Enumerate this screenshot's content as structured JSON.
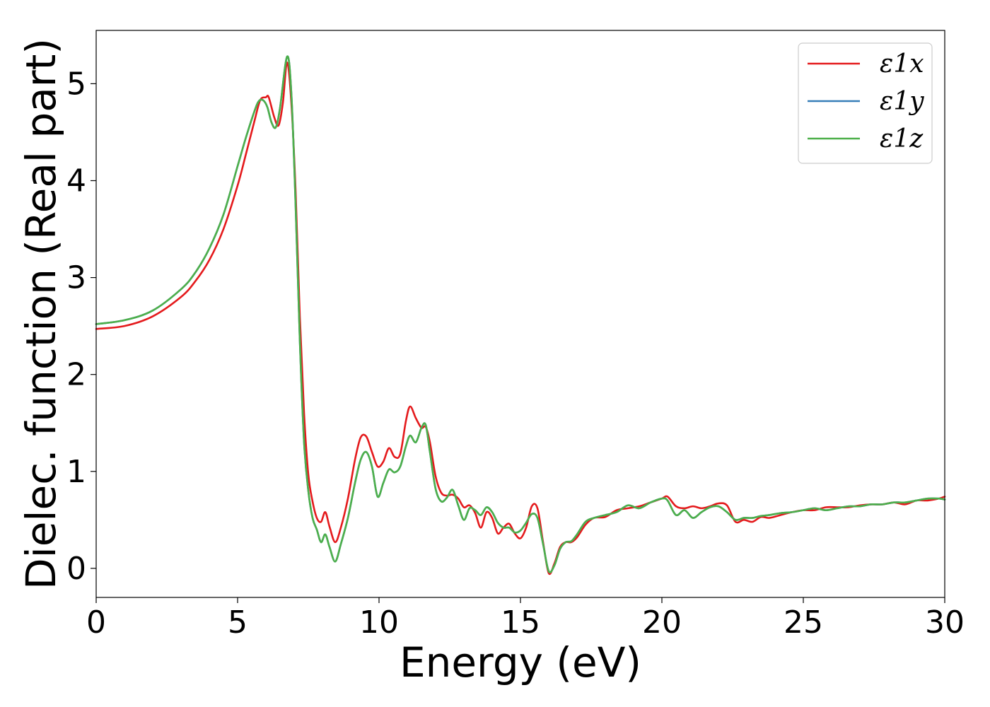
{
  "chart_data": {
    "type": "line",
    "title": "",
    "xlabel": "Energy (eV)",
    "ylabel": "Dielec. function (Real part)",
    "xlim": [
      0,
      30
    ],
    "ylim": [
      -0.3,
      5.55
    ],
    "xticks": [
      0,
      5,
      10,
      15,
      20,
      25,
      30
    ],
    "xtick_labels": [
      "0",
      "5",
      "10",
      "15",
      "20",
      "25",
      "30"
    ],
    "yticks": [
      0,
      1,
      2,
      3,
      4,
      5
    ],
    "ytick_labels": [
      "0",
      "1",
      "2",
      "3",
      "4",
      "5"
    ],
    "grid": false,
    "legend_position": "top-right",
    "series": [
      {
        "name": "ε1x",
        "color": "#e41a1c",
        "x": [
          0,
          1,
          2,
          3,
          3.5,
          4,
          4.5,
          5,
          5.3,
          5.6,
          5.8,
          6.0,
          6.1,
          6.3,
          6.45,
          6.6,
          6.75,
          6.9,
          7.05,
          7.2,
          7.35,
          7.5,
          7.65,
          7.8,
          7.95,
          8.1,
          8.25,
          8.45,
          8.65,
          8.9,
          9.15,
          9.35,
          9.55,
          9.75,
          9.95,
          10.15,
          10.35,
          10.55,
          10.75,
          10.95,
          11.1,
          11.3,
          11.5,
          11.65,
          11.8,
          12.0,
          12.2,
          12.4,
          12.6,
          12.8,
          13.0,
          13.2,
          13.4,
          13.6,
          13.8,
          14.0,
          14.2,
          14.4,
          14.6,
          14.8,
          15.0,
          15.2,
          15.4,
          15.6,
          15.8,
          16.0,
          16.2,
          16.4,
          16.6,
          16.8,
          17.0,
          17.3,
          17.6,
          18.0,
          18.4,
          18.8,
          19.2,
          19.6,
          20.0,
          20.2,
          20.5,
          20.8,
          21.1,
          21.4,
          21.7,
          22.0,
          22.3,
          22.6,
          22.9,
          23.2,
          23.5,
          23.8,
          24.2,
          24.6,
          25.0,
          25.4,
          25.8,
          26.2,
          26.6,
          27.0,
          27.4,
          27.8,
          28.2,
          28.6,
          29.0,
          29.4,
          29.8,
          30.0
        ],
        "y": [
          2.47,
          2.5,
          2.6,
          2.8,
          2.96,
          3.18,
          3.5,
          3.95,
          4.28,
          4.62,
          4.83,
          4.86,
          4.86,
          4.65,
          4.57,
          4.8,
          5.22,
          4.8,
          3.9,
          2.6,
          1.6,
          0.97,
          0.69,
          0.52,
          0.48,
          0.58,
          0.43,
          0.27,
          0.42,
          0.72,
          1.12,
          1.35,
          1.36,
          1.2,
          1.05,
          1.1,
          1.24,
          1.15,
          1.18,
          1.52,
          1.67,
          1.55,
          1.45,
          1.46,
          1.3,
          0.95,
          0.78,
          0.75,
          0.76,
          0.72,
          0.63,
          0.65,
          0.57,
          0.42,
          0.58,
          0.52,
          0.36,
          0.42,
          0.46,
          0.36,
          0.31,
          0.42,
          0.64,
          0.62,
          0.27,
          -0.05,
          0.05,
          0.22,
          0.27,
          0.27,
          0.32,
          0.45,
          0.52,
          0.53,
          0.6,
          0.62,
          0.64,
          0.68,
          0.72,
          0.74,
          0.64,
          0.62,
          0.64,
          0.62,
          0.64,
          0.67,
          0.65,
          0.48,
          0.5,
          0.48,
          0.53,
          0.52,
          0.55,
          0.58,
          0.6,
          0.6,
          0.63,
          0.63,
          0.63,
          0.65,
          0.66,
          0.66,
          0.68,
          0.66,
          0.7,
          0.7,
          0.72,
          0.74
        ]
      },
      {
        "name": "ε1y",
        "color": "#377eb8",
        "x": [
          0,
          1,
          2,
          3,
          3.5,
          4,
          4.5,
          5,
          5.3,
          5.6,
          5.75,
          5.9,
          6.05,
          6.2,
          6.35,
          6.5,
          6.75,
          6.9,
          7.05,
          7.2,
          7.35,
          7.5,
          7.65,
          7.8,
          7.95,
          8.1,
          8.25,
          8.45,
          8.65,
          8.9,
          9.15,
          9.35,
          9.55,
          9.75,
          9.95,
          10.15,
          10.35,
          10.55,
          10.75,
          10.95,
          11.1,
          11.3,
          11.5,
          11.65,
          11.8,
          12.0,
          12.2,
          12.4,
          12.6,
          12.8,
          13.0,
          13.2,
          13.4,
          13.6,
          13.8,
          14.0,
          14.2,
          14.4,
          14.6,
          14.8,
          15.0,
          15.2,
          15.4,
          15.6,
          15.8,
          16.0,
          16.2,
          16.4,
          16.6,
          16.8,
          17.0,
          17.3,
          17.6,
          18.0,
          18.4,
          18.8,
          19.2,
          19.6,
          20.0,
          20.2,
          20.5,
          20.8,
          21.1,
          21.4,
          21.7,
          22.0,
          22.3,
          22.6,
          22.9,
          23.2,
          23.5,
          23.8,
          24.2,
          24.6,
          25.0,
          25.4,
          25.8,
          26.2,
          26.6,
          27.0,
          27.4,
          27.8,
          28.2,
          28.6,
          29.0,
          29.4,
          29.8,
          30.0
        ],
        "y": [
          2.52,
          2.56,
          2.66,
          2.88,
          3.05,
          3.3,
          3.65,
          4.15,
          4.45,
          4.72,
          4.82,
          4.83,
          4.76,
          4.6,
          4.55,
          4.75,
          5.28,
          4.9,
          3.75,
          2.35,
          1.3,
          0.8,
          0.52,
          0.4,
          0.27,
          0.35,
          0.22,
          0.07,
          0.25,
          0.52,
          0.88,
          1.12,
          1.2,
          1.05,
          0.74,
          0.88,
          1.02,
          0.99,
          1.05,
          1.26,
          1.37,
          1.3,
          1.45,
          1.48,
          1.2,
          0.82,
          0.69,
          0.73,
          0.81,
          0.65,
          0.5,
          0.62,
          0.6,
          0.55,
          0.63,
          0.58,
          0.47,
          0.42,
          0.42,
          0.37,
          0.39,
          0.47,
          0.56,
          0.52,
          0.25,
          -0.03,
          0.03,
          0.2,
          0.27,
          0.28,
          0.35,
          0.48,
          0.52,
          0.55,
          0.58,
          0.65,
          0.62,
          0.68,
          0.72,
          0.7,
          0.55,
          0.6,
          0.52,
          0.58,
          0.63,
          0.64,
          0.58,
          0.5,
          0.52,
          0.52,
          0.54,
          0.55,
          0.57,
          0.58,
          0.6,
          0.62,
          0.6,
          0.62,
          0.64,
          0.64,
          0.66,
          0.66,
          0.68,
          0.68,
          0.7,
          0.72,
          0.72,
          0.71
        ]
      },
      {
        "name": "ε1z",
        "color": "#4daf4a",
        "x": [
          0,
          1,
          2,
          3,
          3.5,
          4,
          4.5,
          5,
          5.3,
          5.6,
          5.75,
          5.9,
          6.05,
          6.2,
          6.35,
          6.5,
          6.75,
          6.9,
          7.05,
          7.2,
          7.35,
          7.5,
          7.65,
          7.8,
          7.95,
          8.1,
          8.25,
          8.45,
          8.65,
          8.9,
          9.15,
          9.35,
          9.55,
          9.75,
          9.95,
          10.15,
          10.35,
          10.55,
          10.75,
          10.95,
          11.1,
          11.3,
          11.5,
          11.65,
          11.8,
          12.0,
          12.2,
          12.4,
          12.6,
          12.8,
          13.0,
          13.2,
          13.4,
          13.6,
          13.8,
          14.0,
          14.2,
          14.4,
          14.6,
          14.8,
          15.0,
          15.2,
          15.4,
          15.6,
          15.8,
          16.0,
          16.2,
          16.4,
          16.6,
          16.8,
          17.0,
          17.3,
          17.6,
          18.0,
          18.4,
          18.8,
          19.2,
          19.6,
          20.0,
          20.2,
          20.5,
          20.8,
          21.1,
          21.4,
          21.7,
          22.0,
          22.3,
          22.6,
          22.9,
          23.2,
          23.5,
          23.8,
          24.2,
          24.6,
          25.0,
          25.4,
          25.8,
          26.2,
          26.6,
          27.0,
          27.4,
          27.8,
          28.2,
          28.6,
          29.0,
          29.4,
          29.8,
          30.0
        ],
        "y": [
          2.52,
          2.56,
          2.66,
          2.88,
          3.05,
          3.3,
          3.65,
          4.15,
          4.45,
          4.72,
          4.82,
          4.83,
          4.76,
          4.6,
          4.55,
          4.75,
          5.28,
          4.9,
          3.75,
          2.35,
          1.3,
          0.8,
          0.52,
          0.4,
          0.27,
          0.35,
          0.22,
          0.07,
          0.25,
          0.52,
          0.88,
          1.12,
          1.2,
          1.05,
          0.74,
          0.88,
          1.02,
          0.99,
          1.05,
          1.26,
          1.37,
          1.3,
          1.45,
          1.48,
          1.2,
          0.82,
          0.69,
          0.73,
          0.81,
          0.65,
          0.5,
          0.62,
          0.6,
          0.55,
          0.63,
          0.58,
          0.47,
          0.42,
          0.42,
          0.37,
          0.39,
          0.47,
          0.56,
          0.52,
          0.25,
          -0.03,
          0.03,
          0.2,
          0.27,
          0.28,
          0.35,
          0.48,
          0.52,
          0.55,
          0.58,
          0.65,
          0.62,
          0.68,
          0.72,
          0.7,
          0.55,
          0.6,
          0.52,
          0.58,
          0.63,
          0.64,
          0.58,
          0.5,
          0.52,
          0.52,
          0.54,
          0.55,
          0.57,
          0.58,
          0.6,
          0.62,
          0.6,
          0.62,
          0.64,
          0.64,
          0.66,
          0.66,
          0.68,
          0.68,
          0.7,
          0.72,
          0.72,
          0.71
        ]
      }
    ]
  }
}
